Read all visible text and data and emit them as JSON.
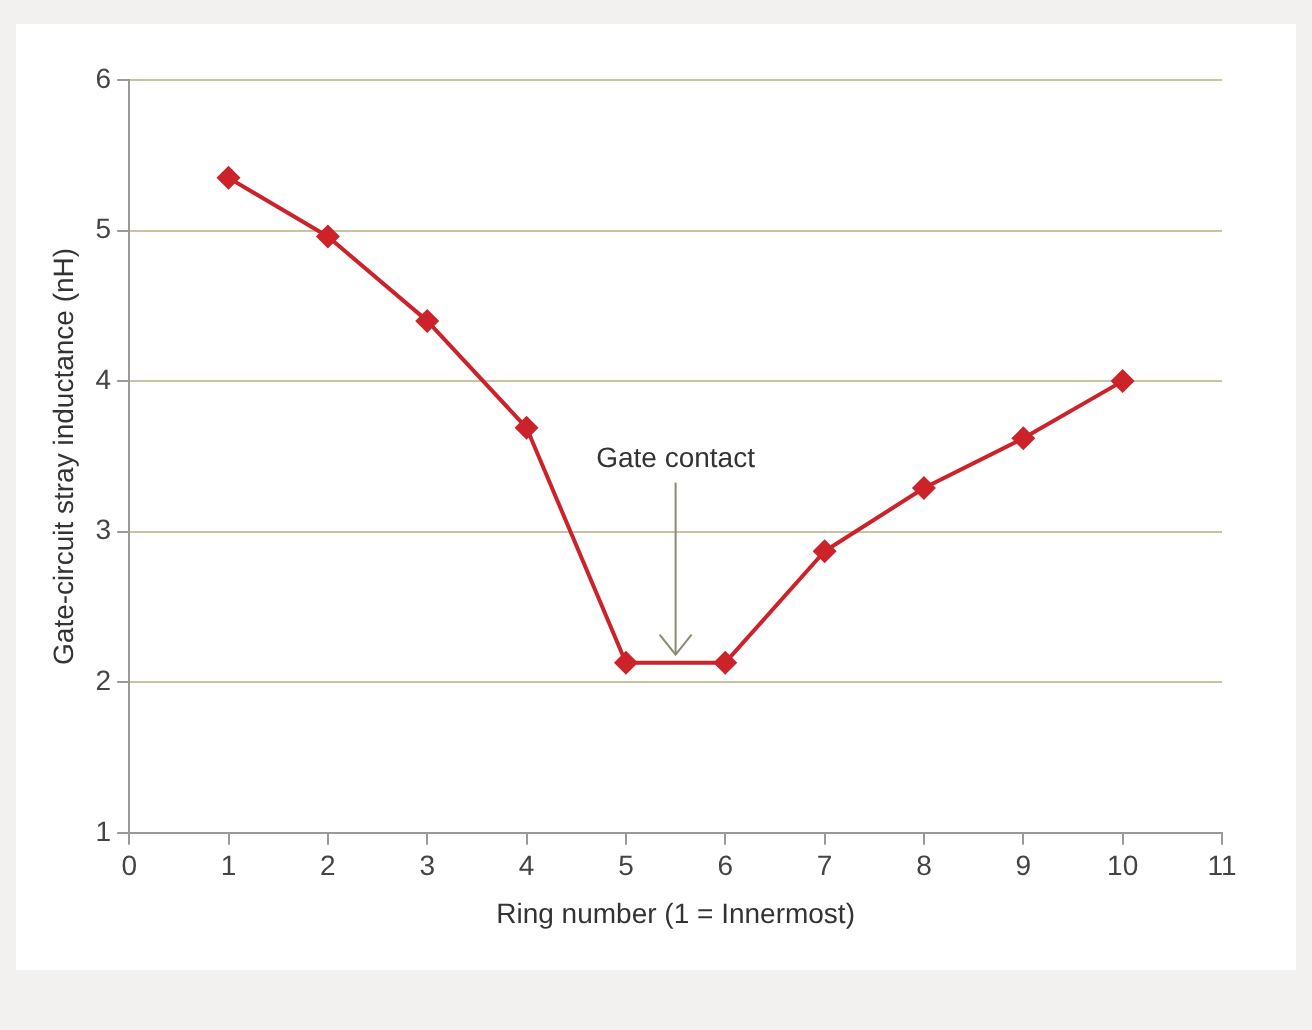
{
  "chart_data": {
    "type": "line",
    "xlabel": "Ring number (1 = Innermost)",
    "ylabel": "Gate-circuit stray inductance (nH)",
    "x": [
      1,
      2,
      3,
      4,
      5,
      6,
      7,
      8,
      9,
      10
    ],
    "series": [
      {
        "color": "#cc2229",
        "values": [
          5.35,
          4.96,
          4.4,
          3.69,
          2.13,
          2.13,
          2.87,
          3.29,
          3.62,
          4.0
        ]
      }
    ],
    "xlim": [
      0,
      11
    ],
    "xticks": [
      0,
      1,
      2,
      3,
      4,
      5,
      6,
      7,
      8,
      9,
      10,
      11
    ],
    "ylim": [
      1,
      6
    ],
    "yticks": [
      1,
      2,
      3,
      4,
      5,
      6
    ],
    "grid": "y",
    "legend": false,
    "marker": "diamond",
    "line_style": "solid",
    "annotations": [
      {
        "text": "Gate contact",
        "x": 5.5,
        "y": 2.13
      }
    ]
  }
}
